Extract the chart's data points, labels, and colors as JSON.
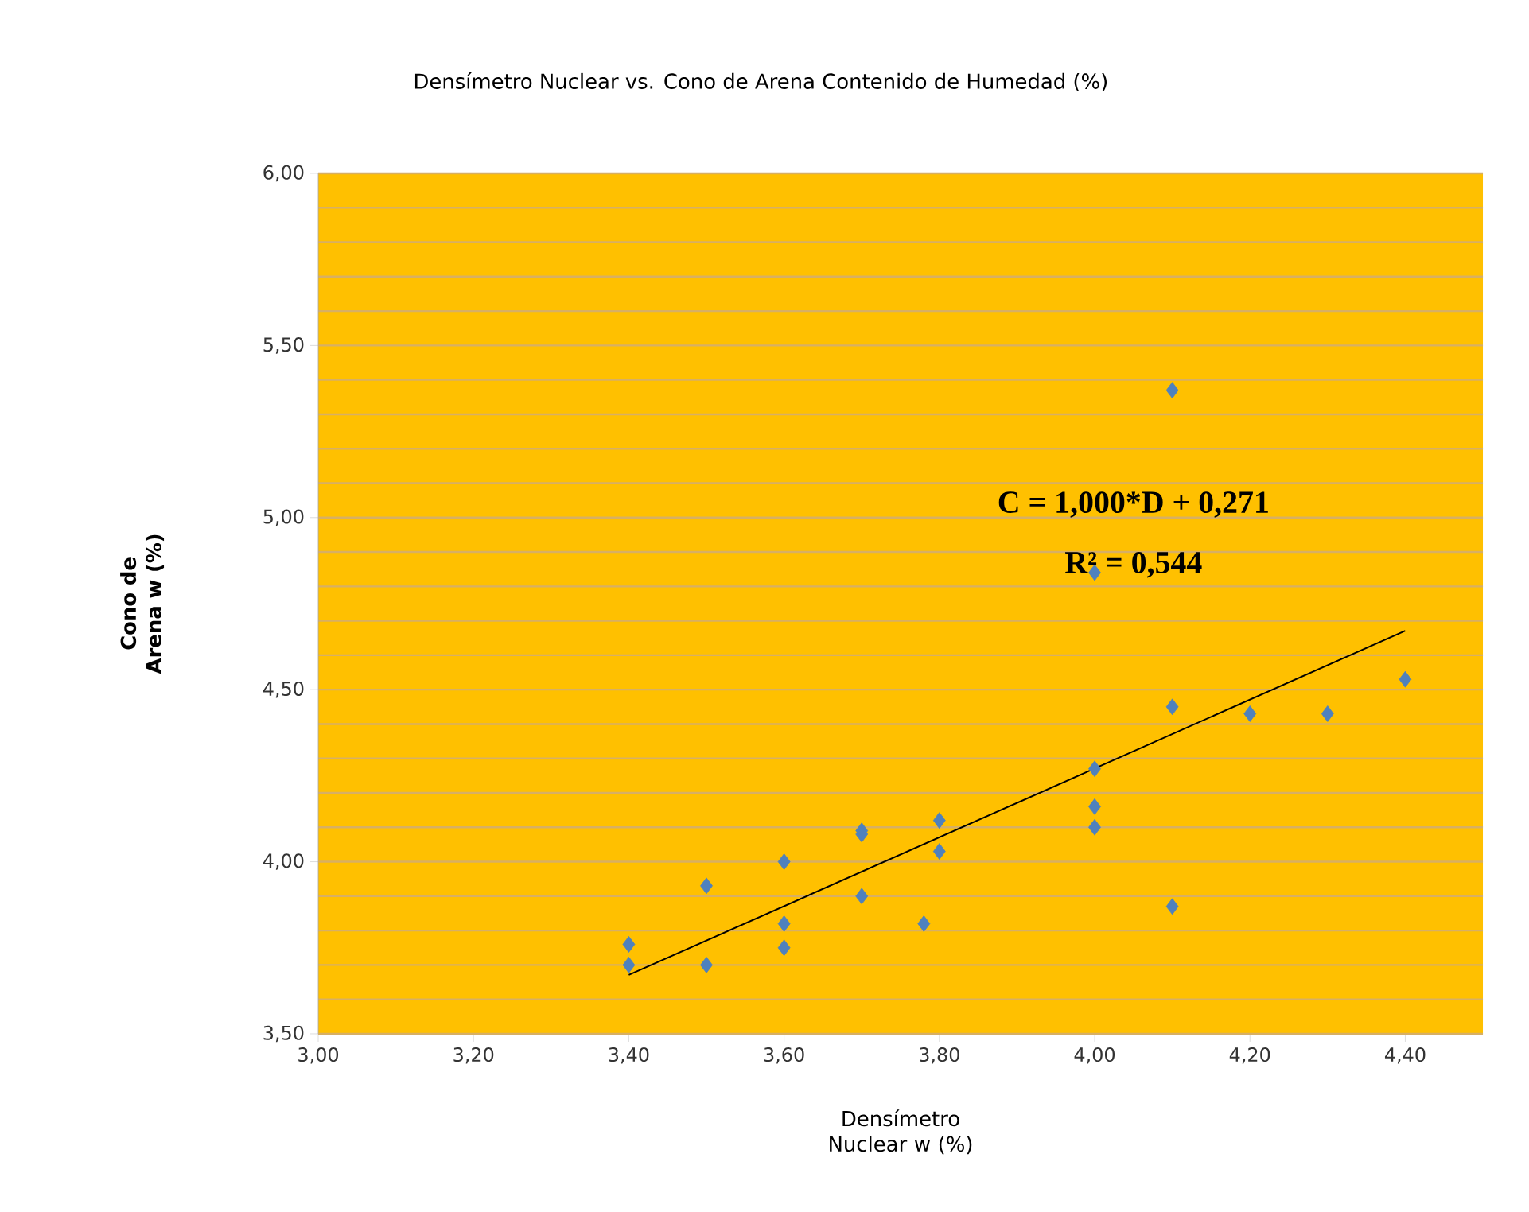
{
  "chart_data": {
    "type": "scatter",
    "title": "Densímetro Nuclear vs. Cono de Arena Contenido de Humedad (%)",
    "xlabel": "Densímetro Nuclear w (%)",
    "ylabel": "Cono de Arena w (%)",
    "annotations": [
      "C = 1,000*D + 0,271",
      "R² = 0,544"
    ],
    "xlim": [
      3.0,
      4.5
    ],
    "ylim": [
      3.5,
      6.0
    ],
    "xticks": [
      {
        "value": 3.0,
        "label": "3,00"
      },
      {
        "value": 3.2,
        "label": "3,20"
      },
      {
        "value": 3.4,
        "label": "3,40"
      },
      {
        "value": 3.6,
        "label": "3,60"
      },
      {
        "value": 3.8,
        "label": "3,80"
      },
      {
        "value": 4.0,
        "label": "4,00"
      },
      {
        "value": 4.2,
        "label": "4,20"
      },
      {
        "value": 4.4,
        "label": "4,40"
      }
    ],
    "yticks": [
      {
        "value": 3.5,
        "label": "3,50"
      },
      {
        "value": 3.6,
        "label": null
      },
      {
        "value": 3.7,
        "label": null
      },
      {
        "value": 3.8,
        "label": null
      },
      {
        "value": 3.9,
        "label": null
      },
      {
        "value": 4.0,
        "label": "4,00"
      },
      {
        "value": 4.1,
        "label": null
      },
      {
        "value": 4.2,
        "label": null
      },
      {
        "value": 4.3,
        "label": null
      },
      {
        "value": 4.4,
        "label": null
      },
      {
        "value": 4.5,
        "label": "4,50"
      },
      {
        "value": 4.6,
        "label": null
      },
      {
        "value": 4.7,
        "label": null
      },
      {
        "value": 4.8,
        "label": null
      },
      {
        "value": 4.9,
        "label": null
      },
      {
        "value": 5.0,
        "label": "5,00"
      },
      {
        "value": 5.1,
        "label": null
      },
      {
        "value": 5.2,
        "label": null
      },
      {
        "value": 5.3,
        "label": null
      },
      {
        "value": 5.4,
        "label": null
      },
      {
        "value": 5.5,
        "label": "5,50"
      },
      {
        "value": 5.6,
        "label": null
      },
      {
        "value": 5.7,
        "label": null
      },
      {
        "value": 5.8,
        "label": null
      },
      {
        "value": 5.9,
        "label": null
      },
      {
        "value": 6.0,
        "label": "6,00"
      }
    ],
    "grid": "y",
    "legend": false,
    "series": [
      {
        "color": "#4f81bd",
        "marker": "diamond",
        "x": [
          3.4,
          3.4,
          3.5,
          3.5,
          3.6,
          3.6,
          3.6,
          3.7,
          3.7,
          3.7,
          3.78,
          3.8,
          3.8,
          4.0,
          4.0,
          4.0,
          4.0,
          4.1,
          4.1,
          4.1,
          4.2,
          4.3,
          4.4
        ],
        "values": [
          3.76,
          3.7,
          3.93,
          3.7,
          4.0,
          3.82,
          3.75,
          4.09,
          4.08,
          3.9,
          3.82,
          4.12,
          4.03,
          4.84,
          4.27,
          4.16,
          4.1,
          5.37,
          4.45,
          3.87,
          4.43,
          4.43,
          4.53
        ]
      },
      {
        "type": "line",
        "color": "#000000",
        "marker": "none",
        "line_style": "solid",
        "x": [
          3.4,
          4.4
        ],
        "values": [
          3.671,
          4.671
        ]
      }
    ]
  }
}
